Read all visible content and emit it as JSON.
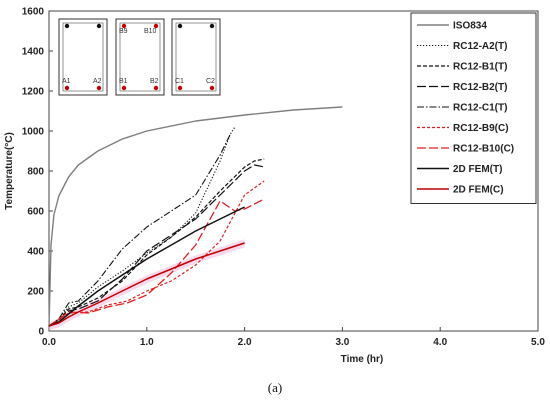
{
  "chart_data": {
    "type": "line",
    "xlabel": "Time (hr)",
    "ylabel": "Temperature(°C)",
    "xlim": [
      0,
      5
    ],
    "ylim": [
      0,
      1600
    ],
    "xticks": [
      "0.0",
      "1.0",
      "2.0",
      "3.0",
      "4.0",
      "5.0"
    ],
    "yticks": [
      "0",
      "200",
      "400",
      "600",
      "800",
      "1000",
      "1200",
      "1400",
      "1600"
    ],
    "grid": false,
    "legend_position": "top-right",
    "caption": "(a)",
    "series": [
      {
        "name": "ISO834",
        "color": "#7f7f7f",
        "dash": "solid",
        "width": 1.4,
        "x": [
          0,
          0.02,
          0.05,
          0.1,
          0.2,
          0.3,
          0.5,
          0.75,
          1.0,
          1.5,
          2.0,
          2.5,
          3.0
        ],
        "y": [
          20,
          430,
          580,
          675,
          770,
          830,
          900,
          960,
          1000,
          1050,
          1080,
          1105,
          1120
        ]
      },
      {
        "name": "RC12-A2(T)",
        "color": "#111111",
        "dash": "1.2 1.8",
        "width": 1.1,
        "x": [
          0,
          0.1,
          0.2,
          0.3,
          0.5,
          0.75,
          1.0,
          1.25,
          1.5,
          1.75,
          1.85,
          1.9
        ],
        "y": [
          25,
          60,
          120,
          140,
          220,
          300,
          390,
          470,
          590,
          850,
          980,
          1020
        ]
      },
      {
        "name": "RC12-B1(T)",
        "color": "#111111",
        "dash": "4 2",
        "width": 1.2,
        "x": [
          0,
          0.1,
          0.2,
          0.3,
          0.5,
          0.75,
          1.0,
          1.25,
          1.5,
          1.75,
          2.0,
          2.1,
          2.2
        ],
        "y": [
          25,
          55,
          110,
          120,
          165,
          250,
          380,
          470,
          570,
          700,
          820,
          850,
          860
        ]
      },
      {
        "name": "RC12-B2(T)",
        "color": "#111111",
        "dash": "9 3",
        "width": 1.2,
        "x": [
          0,
          0.1,
          0.2,
          0.3,
          0.5,
          0.75,
          1.0,
          1.25,
          1.5,
          1.75,
          2.0,
          2.1,
          2.2
        ],
        "y": [
          25,
          55,
          100,
          110,
          150,
          260,
          400,
          480,
          560,
          680,
          800,
          830,
          820
        ]
      },
      {
        "name": "RC12-C1(T)",
        "color": "#111111",
        "dash": "7 2 1.5 2",
        "width": 1.1,
        "x": [
          0,
          0.1,
          0.2,
          0.3,
          0.5,
          0.75,
          1.0,
          1.25,
          1.5,
          1.75,
          1.85
        ],
        "y": [
          25,
          60,
          140,
          150,
          250,
          410,
          520,
          600,
          680,
          880,
          980
        ]
      },
      {
        "name": "RC12-B9(C)",
        "color": "#e02020",
        "dash": "3 2",
        "width": 1.2,
        "x": [
          0,
          0.2,
          0.4,
          0.6,
          0.8,
          1.0,
          1.25,
          1.5,
          1.75,
          2.0,
          2.2
        ],
        "y": [
          25,
          90,
          95,
          130,
          150,
          200,
          250,
          330,
          450,
          680,
          750
        ]
      },
      {
        "name": "RC12-B10(C)",
        "color": "#e02020",
        "dash": "9 3",
        "width": 1.3,
        "x": [
          0,
          0.2,
          0.4,
          0.6,
          0.8,
          1.0,
          1.25,
          1.5,
          1.75,
          1.9,
          2.0,
          2.2
        ],
        "y": [
          25,
          95,
          90,
          120,
          140,
          180,
          290,
          430,
          650,
          600,
          610,
          660
        ]
      },
      {
        "name": "2D FEM(T)",
        "color": "#111111",
        "dash": "solid",
        "width": 1.5,
        "x": [
          0,
          0.1,
          0.2,
          0.3,
          0.5,
          0.75,
          1.0,
          1.25,
          1.5,
          1.75,
          2.0
        ],
        "y": [
          25,
          45,
          85,
          125,
          200,
          280,
          360,
          430,
          500,
          560,
          620
        ]
      },
      {
        "name": "2D FEM(C)",
        "color": "#c00000",
        "dash": "solid",
        "width": 1.5,
        "x": [
          0,
          0.1,
          0.2,
          0.3,
          0.5,
          0.75,
          1.0,
          1.25,
          1.5,
          1.75,
          2.0
        ],
        "y": [
          25,
          40,
          70,
          95,
          140,
          200,
          260,
          310,
          360,
          400,
          440
        ]
      }
    ],
    "inset_sections": [
      {
        "labels": [
          "A1",
          "A2"
        ]
      },
      {
        "labels": [
          "B9",
          "B10",
          "B1",
          "B2"
        ]
      },
      {
        "labels": [
          "C1",
          "C2"
        ]
      }
    ]
  }
}
